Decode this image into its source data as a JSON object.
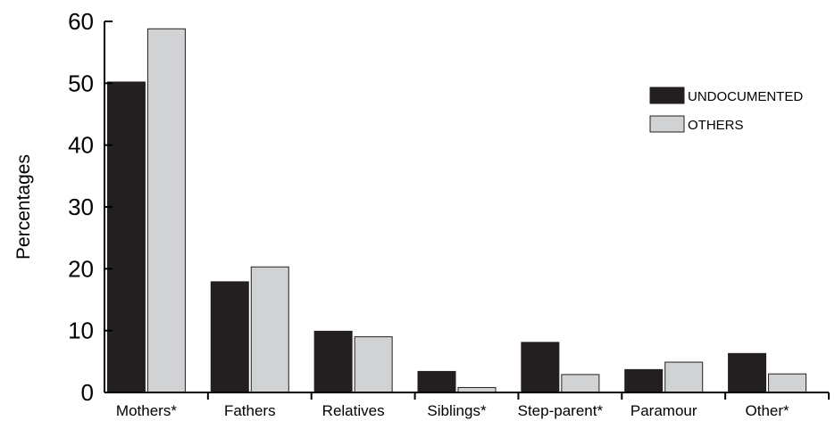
{
  "chart_data": {
    "type": "bar",
    "ylabel": "Percentages",
    "xlabel": "",
    "ylim": [
      0,
      60
    ],
    "yticks": [
      0,
      10,
      20,
      30,
      40,
      50,
      60
    ],
    "categories": [
      "Mothers*",
      "Fathers",
      "Relatives",
      "Siblings*",
      "Step-parent*",
      "Paramour",
      "Other*"
    ],
    "series": [
      {
        "name": "UNDOCUMENTED",
        "color": "#231f20",
        "values": [
          50.2,
          17.9,
          9.9,
          3.4,
          8.1,
          3.7,
          6.3
        ]
      },
      {
        "name": "OTHERS",
        "color": "#d1d2d4",
        "values": [
          58.8,
          20.3,
          9.0,
          0.8,
          2.9,
          4.9,
          3.0
        ]
      }
    ],
    "legend_position": "top-right",
    "grid": false
  }
}
